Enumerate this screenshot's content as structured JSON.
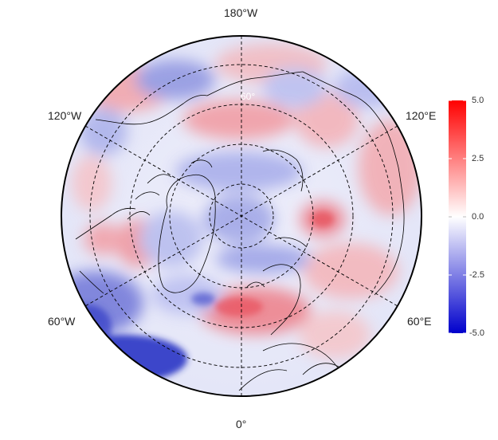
{
  "map": {
    "projection": "north-polar-stereographic",
    "longitude_labels": {
      "top": "180°W",
      "bottom": "0°",
      "upper_left": "120°W",
      "upper_right": "120°E",
      "lower_left": "60°W",
      "lower_right": "60°E"
    },
    "latitude_label": "60°"
  },
  "colorbar": {
    "ticks": [
      "5.0",
      "2.5",
      "0.0",
      "-2.5",
      "-5.0"
    ],
    "min": -5.0,
    "max": 5.0,
    "colors": {
      "high": "#ff0000",
      "mid": "#ffffff",
      "low": "#0000cc"
    }
  }
}
